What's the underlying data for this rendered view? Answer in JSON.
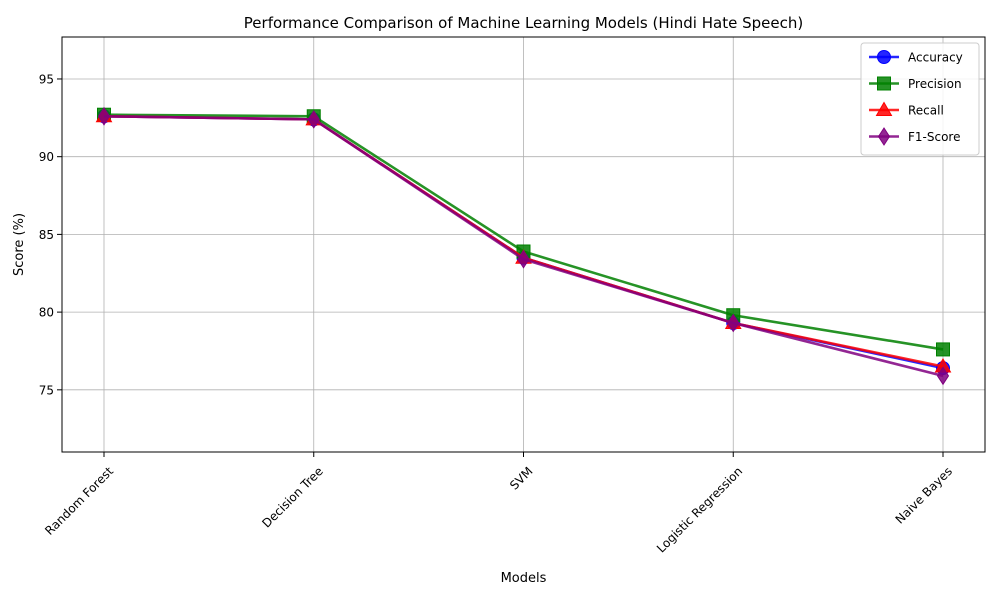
{
  "chart_data": {
    "type": "line",
    "title": "Performance Comparison of Machine Learning Models (Hindi Hate Speech)",
    "xlabel": "Models",
    "ylabel": "Score (%)",
    "categories": [
      "Random Forest",
      "Decision Tree",
      "SVM",
      "Logistic Regression",
      "Naive Bayes"
    ],
    "ylim": [
      71,
      97.7
    ],
    "yticks": [
      75,
      80,
      85,
      90,
      95
    ],
    "grid": true,
    "legend_position": "top-right",
    "series": [
      {
        "name": "Accuracy",
        "color": "#0000ff",
        "marker": "circle",
        "values": [
          92.6,
          92.4,
          83.5,
          79.3,
          76.4
        ]
      },
      {
        "name": "Precision",
        "color": "#008000",
        "marker": "square",
        "values": [
          92.7,
          92.6,
          83.9,
          79.8,
          77.6
        ]
      },
      {
        "name": "Recall",
        "color": "#ff0000",
        "marker": "triangle",
        "values": [
          92.6,
          92.4,
          83.5,
          79.3,
          76.5
        ]
      },
      {
        "name": "F1-Score",
        "color": "#800080",
        "marker": "diamond",
        "values": [
          92.6,
          92.4,
          83.4,
          79.3,
          75.9
        ]
      }
    ]
  }
}
